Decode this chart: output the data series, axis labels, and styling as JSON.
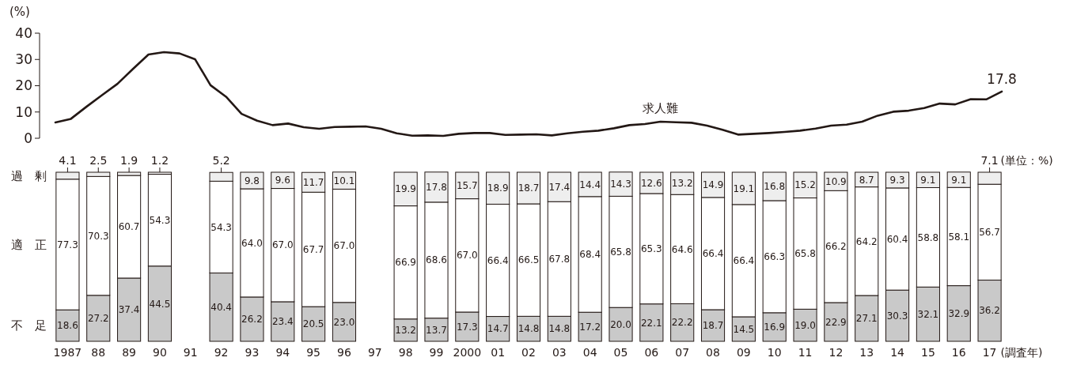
{
  "chart_data": [
    {
      "type": "line",
      "ylabel": "(%)",
      "ylim": [
        0,
        40
      ],
      "yticks": [
        0,
        10,
        20,
        30,
        40
      ],
      "tick_labels": "y",
      "categories": [
        null,
        null,
        null,
        null,
        null,
        null,
        null,
        null,
        null,
        null,
        null,
        null,
        null,
        null,
        null,
        null,
        null,
        null,
        null,
        null,
        null,
        null,
        null,
        null,
        null,
        null,
        null,
        null,
        null,
        null,
        null,
        null,
        null,
        null,
        null,
        null,
        null,
        null,
        null,
        null,
        null,
        null,
        null,
        null,
        null,
        null,
        null,
        null,
        null,
        null,
        null,
        null,
        null,
        null,
        null,
        null,
        null,
        null,
        null,
        null,
        null,
        null
      ],
      "series": [
        {
          "name": "求人難",
          "color": "#231815",
          "values": [
            6.0,
            7.4,
            12.0,
            16.4,
            20.7,
            26.4,
            31.9,
            32.8,
            32.3,
            30.1,
            20.2,
            15.8,
            9.3,
            6.7,
            5.0,
            5.6,
            4.2,
            3.6,
            4.3,
            4.4,
            4.5,
            3.6,
            1.9,
            1.0,
            1.1,
            0.9,
            1.7,
            2.0,
            2.0,
            1.3,
            1.4,
            1.5,
            1.1,
            1.9,
            2.5,
            2.9,
            3.8,
            5.0,
            5.4,
            6.3,
            6.1,
            5.9,
            4.8,
            3.2,
            1.4,
            1.7,
            2.0,
            2.4,
            2.9,
            3.7,
            4.8,
            5.2,
            6.3,
            8.6,
            10.1,
            10.5,
            11.5,
            13.2,
            12.9,
            14.9,
            14.8,
            17.8
          ],
          "value_labels": [
            null,
            null,
            null,
            null,
            null,
            null,
            null,
            null,
            null,
            null,
            null,
            null,
            null,
            null,
            null,
            null,
            null,
            null,
            null,
            null,
            null,
            null,
            null,
            null,
            null,
            null,
            null,
            null,
            null,
            null,
            null,
            null,
            null,
            null,
            null,
            null,
            null,
            null,
            null,
            null,
            null,
            null,
            null,
            null,
            null,
            null,
            null,
            null,
            null,
            null,
            null,
            null,
            null,
            null,
            null,
            null,
            null,
            null,
            null,
            null,
            null,
            "17.8"
          ]
        }
      ]
    },
    {
      "type": "bar",
      "stacked": true,
      "xlabel": "(調査年)",
      "ylim": [
        0,
        100
      ],
      "tick_labels": "x",
      "annotations": [
        "(単位：%)"
      ],
      "categories": [
        "1987",
        "88",
        "89",
        "90",
        "91",
        "92",
        "93",
        "94",
        "95",
        "96",
        "97",
        "98",
        "99",
        "2000",
        "01",
        "02",
        "03",
        "04",
        "05",
        "06",
        "07",
        "08",
        "09",
        "10",
        "11",
        "12",
        "13",
        "14",
        "15",
        "16",
        "17"
      ],
      "series": [
        {
          "name": "不　足",
          "color": "#c9c9c9",
          "values": [
            18.6,
            27.2,
            37.4,
            44.5,
            null,
            40.4,
            26.2,
            23.4,
            20.5,
            23.0,
            null,
            13.2,
            13.7,
            17.3,
            14.7,
            14.8,
            14.8,
            17.2,
            20.0,
            22.1,
            22.2,
            18.7,
            14.5,
            16.9,
            19.0,
            22.9,
            27.1,
            30.3,
            32.1,
            32.9,
            36.2
          ],
          "value_labels": [
            "18.6",
            "27.2",
            "37.4",
            "44.5",
            null,
            "40.4",
            "26.2",
            "23.4",
            "20.5",
            "23.0",
            null,
            "13.2",
            "13.7",
            "17.3",
            "14.7",
            "14.8",
            "14.8",
            "17.2",
            "20.0",
            "22.1",
            "22.2",
            "18.7",
            "14.5",
            "16.9",
            "19.0",
            "22.9",
            "27.1",
            "30.3",
            "32.1",
            "32.9",
            "36.2"
          ]
        },
        {
          "name": "適　正",
          "color": "#ffffff",
          "values": [
            77.3,
            70.3,
            60.7,
            54.3,
            null,
            54.3,
            64.0,
            67.0,
            67.7,
            67.0,
            null,
            66.9,
            68.6,
            67.0,
            66.4,
            66.5,
            67.8,
            68.4,
            65.8,
            65.3,
            64.6,
            66.4,
            66.4,
            66.3,
            65.8,
            66.2,
            64.2,
            60.4,
            58.8,
            58.1,
            56.7
          ],
          "value_labels": [
            "77.3",
            "70.3",
            "60.7",
            "54.3",
            null,
            "54.3",
            "64.0",
            "67.0",
            "67.7",
            "67.0",
            null,
            "66.9",
            "68.6",
            "67.0",
            "66.4",
            "66.5",
            "67.8",
            "68.4",
            "65.8",
            "65.3",
            "64.6",
            "66.4",
            "66.4",
            "66.3",
            "65.8",
            "66.2",
            "64.2",
            "60.4",
            "58.8",
            "58.1",
            "56.7"
          ]
        },
        {
          "name": "過　剰",
          "color": "#eeeeee",
          "values": [
            4.1,
            2.5,
            1.9,
            1.2,
            null,
            5.2,
            9.8,
            9.6,
            11.7,
            10.1,
            null,
            19.9,
            17.8,
            15.7,
            18.9,
            18.7,
            17.4,
            14.4,
            14.3,
            12.6,
            13.2,
            14.9,
            19.1,
            16.8,
            15.2,
            10.9,
            8.7,
            9.3,
            9.1,
            9.1,
            7.1
          ],
          "value_labels": [
            "4.1",
            "2.5",
            "1.9",
            "1.2",
            null,
            "5.2",
            "9.8",
            "9.6",
            "11.7",
            "10.1",
            null,
            "19.9",
            "17.8",
            "15.7",
            "18.9",
            "18.7",
            "17.4",
            "14.4",
            "14.3",
            "12.6",
            "13.2",
            "14.9",
            "19.1",
            "16.8",
            "15.2",
            "10.9",
            "8.7",
            "9.3",
            "9.1",
            "9.1",
            "7.1"
          ]
        }
      ]
    }
  ]
}
